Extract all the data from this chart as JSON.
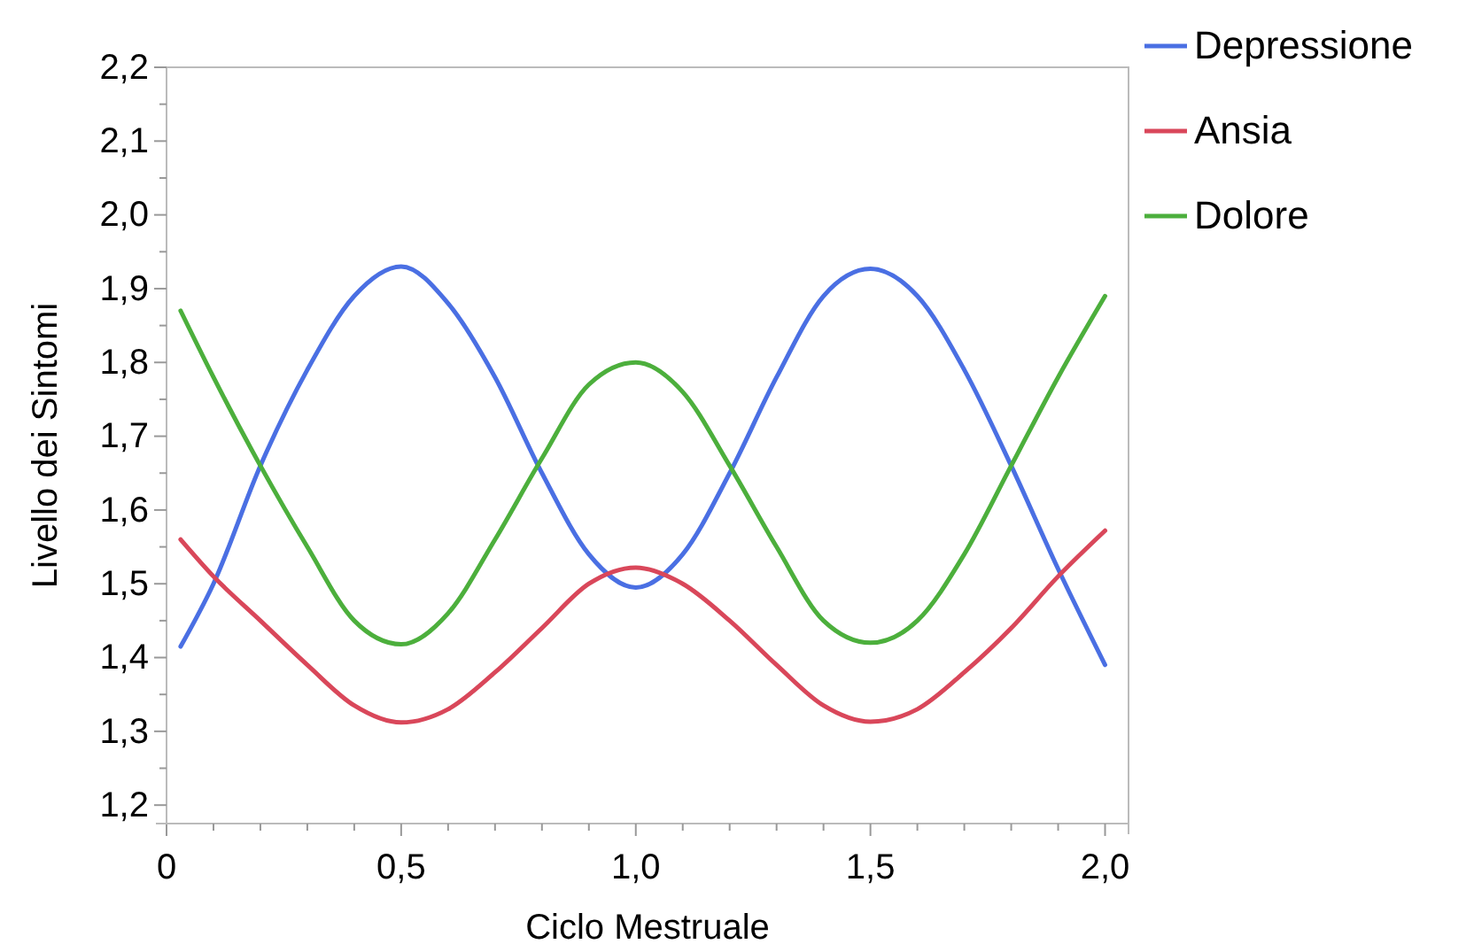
{
  "chart_data": {
    "type": "line",
    "xlabel": "Ciclo Mestruale",
    "ylabel": "Livello dei Sintomi",
    "x": [
      0.03,
      0.1,
      0.2,
      0.3,
      0.4,
      0.5,
      0.6,
      0.7,
      0.8,
      0.9,
      1.0,
      1.1,
      1.2,
      1.3,
      1.4,
      1.5,
      1.6,
      1.7,
      1.8,
      1.9,
      2.0
    ],
    "series": [
      {
        "name": "Depressione",
        "color": "#4a6fe3",
        "values": [
          1.415,
          1.5,
          1.66,
          1.79,
          1.89,
          1.93,
          1.88,
          1.78,
          1.65,
          1.54,
          1.495,
          1.54,
          1.65,
          1.78,
          1.89,
          1.927,
          1.89,
          1.79,
          1.66,
          1.52,
          1.39
        ]
      },
      {
        "name": "Ansia",
        "color": "#d9475a",
        "values": [
          1.56,
          1.51,
          1.45,
          1.39,
          1.335,
          1.312,
          1.33,
          1.38,
          1.44,
          1.5,
          1.522,
          1.5,
          1.45,
          1.39,
          1.335,
          1.313,
          1.33,
          1.38,
          1.44,
          1.51,
          1.572
        ]
      },
      {
        "name": "Dolore",
        "color": "#4caf3c",
        "values": [
          1.87,
          1.78,
          1.66,
          1.55,
          1.45,
          1.418,
          1.46,
          1.56,
          1.67,
          1.77,
          1.8,
          1.76,
          1.66,
          1.55,
          1.45,
          1.42,
          1.45,
          1.54,
          1.66,
          1.78,
          1.89
        ]
      }
    ],
    "xlim": [
      0,
      2.05
    ],
    "ylim": [
      1.175,
      2.2
    ],
    "xticks": [
      {
        "value": 0,
        "label": "0"
      },
      {
        "value": 0.1,
        "label": null
      },
      {
        "value": 0.2,
        "label": null
      },
      {
        "value": 0.3,
        "label": null
      },
      {
        "value": 0.4,
        "label": null
      },
      {
        "value": 0.5,
        "label": "0,5"
      },
      {
        "value": 0.6,
        "label": null
      },
      {
        "value": 0.7,
        "label": null
      },
      {
        "value": 0.8,
        "label": null
      },
      {
        "value": 0.9,
        "label": null
      },
      {
        "value": 1.0,
        "label": "1,0"
      },
      {
        "value": 1.1,
        "label": null
      },
      {
        "value": 1.2,
        "label": null
      },
      {
        "value": 1.3,
        "label": null
      },
      {
        "value": 1.4,
        "label": null
      },
      {
        "value": 1.5,
        "label": "1,5"
      },
      {
        "value": 1.6,
        "label": null
      },
      {
        "value": 1.7,
        "label": null
      },
      {
        "value": 1.8,
        "label": null
      },
      {
        "value": 1.9,
        "label": null
      },
      {
        "value": 2.0,
        "label": "2,0"
      }
    ],
    "yticks": [
      {
        "value": 1.2,
        "label": "1,2"
      },
      {
        "value": 1.25,
        "label": null
      },
      {
        "value": 1.3,
        "label": "1,3"
      },
      {
        "value": 1.35,
        "label": null
      },
      {
        "value": 1.4,
        "label": "1,4"
      },
      {
        "value": 1.45,
        "label": null
      },
      {
        "value": 1.5,
        "label": "1,5"
      },
      {
        "value": 1.55,
        "label": null
      },
      {
        "value": 1.6,
        "label": "1,6"
      },
      {
        "value": 1.65,
        "label": null
      },
      {
        "value": 1.7,
        "label": "1,7"
      },
      {
        "value": 1.75,
        "label": null
      },
      {
        "value": 1.8,
        "label": "1,8"
      },
      {
        "value": 1.85,
        "label": null
      },
      {
        "value": 1.9,
        "label": "1,9"
      },
      {
        "value": 1.95,
        "label": null
      },
      {
        "value": 2.0,
        "label": "2,0"
      },
      {
        "value": 2.05,
        "label": null
      },
      {
        "value": 2.1,
        "label": "2,1"
      },
      {
        "value": 2.15,
        "label": null
      },
      {
        "value": 2.2,
        "label": "2,2"
      }
    ],
    "legend": "top right",
    "grid": false,
    "marker": "none",
    "line_style": "solid"
  }
}
